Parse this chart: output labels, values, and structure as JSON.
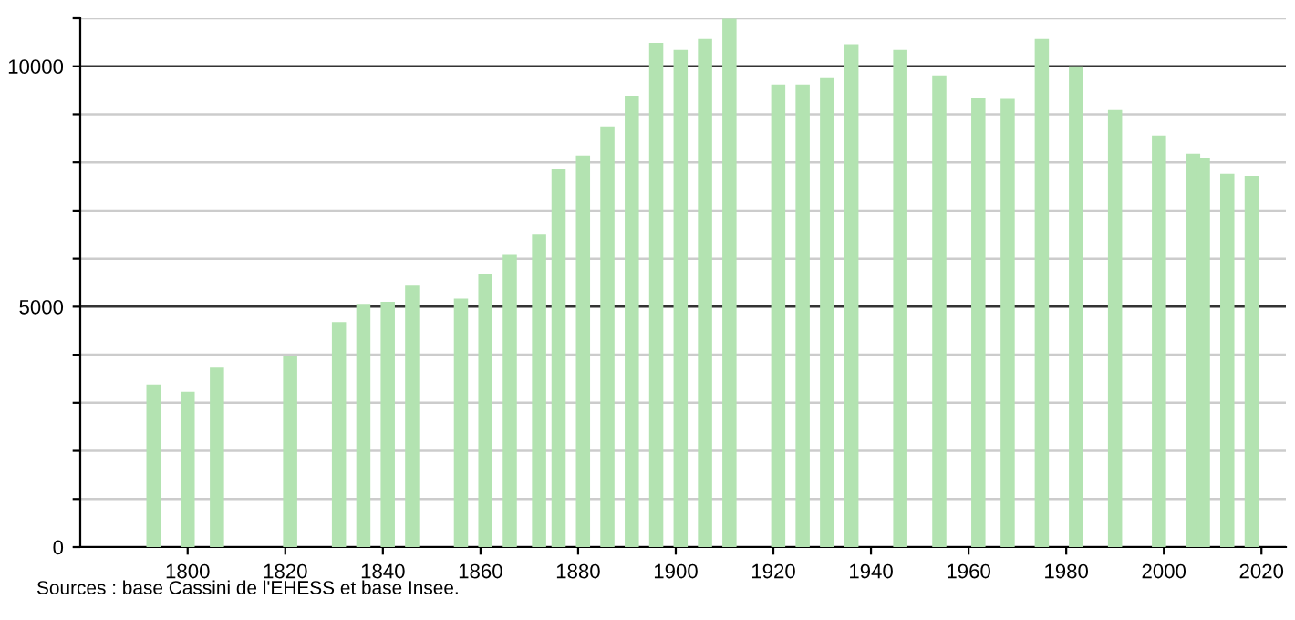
{
  "chart_data": {
    "type": "bar",
    "annotations": [
      "Sources : base Cassini de l'EHESS et base Insee."
    ],
    "x": [
      1793,
      1800,
      1806,
      1821,
      1831,
      1836,
      1841,
      1846,
      1856,
      1861,
      1866,
      1872,
      1876,
      1881,
      1886,
      1891,
      1896,
      1901,
      1906,
      1911,
      1921,
      1926,
      1931,
      1936,
      1946,
      1954,
      1962,
      1968,
      1975,
      1982,
      1990,
      1999,
      2006,
      2008,
      2013,
      2018
    ],
    "series": [
      {
        "color": "#b3e3b1",
        "values": [
          3380,
          3230,
          3730,
          3970,
          4680,
          5060,
          5100,
          5440,
          5170,
          5670,
          6080,
          6500,
          7870,
          8140,
          8750,
          9390,
          10490,
          10340,
          10570,
          10990,
          9620,
          9620,
          9770,
          10460,
          10340,
          9810,
          9350,
          9320,
          10570,
          10000,
          9090,
          8560,
          8180,
          8100,
          7760,
          7720
        ]
      }
    ],
    "xlim": [
      1778,
      2025
    ],
    "xticks": [
      1800,
      1820,
      1840,
      1860,
      1880,
      1900,
      1920,
      1940,
      1960,
      1980,
      2000,
      2020
    ],
    "ylim": [
      0,
      11000
    ],
    "yticks": [
      0,
      {
        "value": 1000,
        "label": null
      },
      {
        "value": 2000,
        "label": null
      },
      {
        "value": 3000,
        "label": null
      },
      {
        "value": 4000,
        "label": null
      },
      5000,
      {
        "value": 6000,
        "label": null
      },
      {
        "value": 7000,
        "label": null
      },
      {
        "value": 8000,
        "label": null
      },
      {
        "value": 9000,
        "label": null
      },
      10000,
      {
        "value": 11000,
        "label": null
      }
    ],
    "grid": "y",
    "legend": false
  }
}
